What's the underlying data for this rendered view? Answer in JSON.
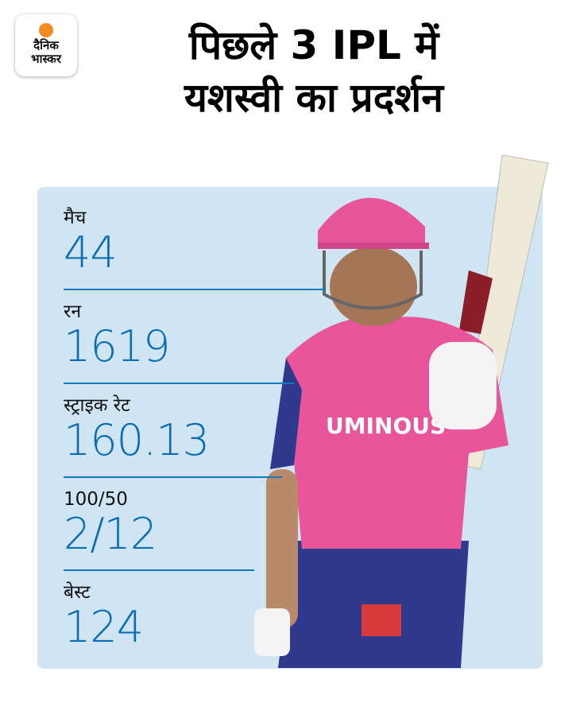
{
  "logo": {
    "line1": "दैनिक",
    "line2": "भास्कर"
  },
  "title": {
    "line1": "पिछले 3 IPL में",
    "line2": "यशस्वी का प्रदर्शन"
  },
  "stats": [
    {
      "label": "मैच",
      "value": "44"
    },
    {
      "label": "रन",
      "value": "1619"
    },
    {
      "label": "स्ट्राइक रेट",
      "value": "160.13"
    },
    {
      "label": "100/50",
      "value": "2/12"
    },
    {
      "label": "बेस्ट",
      "value": "124"
    }
  ],
  "colors": {
    "panel": "#cfe5f3",
    "value": "#0b6db3",
    "logo_dot": "#f58a1f",
    "jersey": "#e8559b",
    "trousers": "#2f3a8f"
  }
}
